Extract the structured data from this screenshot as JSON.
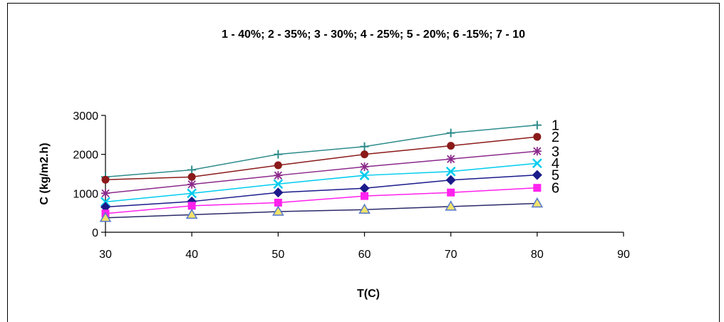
{
  "chart_data": {
    "type": "line",
    "title": "1 - 40%; 2 - 35%; 3 - 30%; 4 - 25%; 5 - 20%; 6 -15%; 7 - 10",
    "xlabel": "T(C)",
    "ylabel": "C (kg/m2.h)",
    "xlim": [
      30,
      90
    ],
    "ylim": [
      0,
      3000
    ],
    "x_ticks": [
      "30",
      "40",
      "50",
      "60",
      "70",
      "80",
      "90"
    ],
    "y_ticks": [
      "0",
      "1000",
      "2000",
      "3000"
    ],
    "grid": false,
    "legend": "none",
    "x": [
      30,
      40,
      50,
      60,
      70,
      80
    ],
    "series": [
      {
        "name": "1",
        "label": "1",
        "color": "#2E8B8B",
        "marker": "plus",
        "values": [
          1420,
          1600,
          2000,
          2200,
          2550,
          2750
        ]
      },
      {
        "name": "2",
        "label": "2",
        "color": "#8B1A1A",
        "marker": "circle",
        "values": [
          1350,
          1420,
          1720,
          2000,
          2220,
          2450
        ]
      },
      {
        "name": "3",
        "label": "3",
        "color": "#8B2A8B",
        "marker": "star",
        "values": [
          1000,
          1230,
          1460,
          1680,
          1880,
          2080
        ]
      },
      {
        "name": "4",
        "label": "4",
        "color": "#00CCEE",
        "marker": "x",
        "values": [
          780,
          1000,
          1240,
          1460,
          1560,
          1770
        ]
      },
      {
        "name": "5",
        "label": "5",
        "color": "#1A1A8B",
        "marker": "diamond",
        "values": [
          650,
          790,
          1020,
          1130,
          1340,
          1470
        ]
      },
      {
        "name": "6",
        "label": "6",
        "color": "#FF22EE",
        "marker": "square",
        "values": [
          480,
          680,
          760,
          930,
          1020,
          1140
        ]
      },
      {
        "name": "7",
        "label": "",
        "color": "#2A2A6A",
        "marker": "triangle",
        "values": [
          370,
          450,
          530,
          580,
          660,
          740
        ]
      }
    ]
  }
}
